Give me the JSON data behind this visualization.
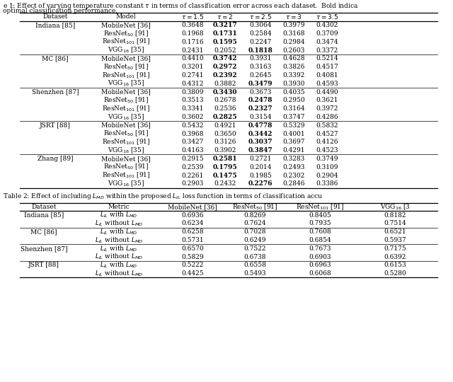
{
  "table1_bold": {
    "0": 3,
    "1": 3,
    "2": 3,
    "3": 4,
    "4": 3,
    "5": 3,
    "6": 3,
    "7": 4,
    "8": 3,
    "9": 4,
    "10": 4,
    "11": 3,
    "12": 4,
    "13": 4,
    "14": 4,
    "15": 4,
    "16": 3,
    "17": 3,
    "18": 3,
    "19": 4
  },
  "table1_group_rows": [
    3,
    7,
    11,
    15
  ],
  "table1_data": [
    [
      "Indiana [85]",
      "MobileNet [36]",
      "0.3648",
      "0.3217",
      "0.3064",
      "0.3979",
      "0.4302"
    ],
    [
      "",
      "ResNet$_{50}$ [91]",
      "0.1968",
      "0.1731",
      "0.2584",
      "0.3168",
      "0.3709"
    ],
    [
      "",
      "ResNet$_{101}$ [91]",
      "0.1716",
      "0.1595",
      "0.2247",
      "0.2984",
      "0.3474"
    ],
    [
      "",
      "VGG$_{16}$ [35]",
      "0.2431",
      "0.2052",
      "0.1818",
      "0.2603",
      "0.3372"
    ],
    [
      "MC [86]",
      "MobileNet [36]",
      "0.4410",
      "0.3742",
      "0.3931",
      "0.4628",
      "0.5214"
    ],
    [
      "",
      "ResNet$_{50}$ [91]",
      "0.3201",
      "0.2972",
      "0.3163",
      "0.3826",
      "0.4517"
    ],
    [
      "",
      "ResNet$_{101}$ [91]",
      "0.2741",
      "0.2392",
      "0.2645",
      "0.3392",
      "0.4081"
    ],
    [
      "",
      "VGG$_{16}$ [35]",
      "0.4312",
      "0.3882",
      "0.3479",
      "0.3930",
      "0.4593"
    ],
    [
      "Shenzhen [87]",
      "MobileNet [36]",
      "0.3809",
      "0.3430",
      "0.3673",
      "0.4035",
      "0.4490"
    ],
    [
      "",
      "ResNet$_{50}$ [91]",
      "0.3513",
      "0.2678",
      "0.2478",
      "0.2950",
      "0.3621"
    ],
    [
      "",
      "ResNet$_{101}$ [91]",
      "0.3341",
      "0.2536",
      "0.2327",
      "0.3164",
      "0.3972"
    ],
    [
      "",
      "VGG$_{16}$ [35]",
      "0.3602",
      "0.2825",
      "0.3154",
      "0.3747",
      "0.4286"
    ],
    [
      "JSRT [88]",
      "MobileNet [36]",
      "0.5432",
      "0.4921",
      "0.4778",
      "0.5329",
      "0.5832"
    ],
    [
      "",
      "ResNet$_{50}$ [91]",
      "0.3968",
      "0.3650",
      "0.3442",
      "0.4001",
      "0.4527"
    ],
    [
      "",
      "ResNet$_{101}$ [91]",
      "0.3427",
      "0.3126",
      "0.3037",
      "0.3697",
      "0.4126"
    ],
    [
      "",
      "VGG$_{16}$ [35]",
      "0.4163",
      "0.3902",
      "0.3847",
      "0.4291",
      "0.4523"
    ],
    [
      "Zhang [89]",
      "MobileNet [36]",
      "0.2915",
      "0.2581",
      "0.2721",
      "0.3283",
      "0.3749"
    ],
    [
      "",
      "ResNet$_{50}$ [91]",
      "0.2539",
      "0.1795",
      "0.2014",
      "0.2493",
      "0.3109"
    ],
    [
      "",
      "ResNet$_{101}$ [91]",
      "0.2261",
      "0.1475",
      "0.1985",
      "0.2302",
      "0.2904"
    ],
    [
      "",
      "VGG$_{16}$ [35]",
      "0.2903",
      "0.2432",
      "0.2276",
      "0.2846",
      "0.3386"
    ]
  ],
  "table2_group_rows": [
    1,
    3,
    5
  ],
  "table2_data": [
    [
      "Indiana [85]",
      "with",
      "0.6936",
      "0.8269",
      "0.8405",
      "0.8182"
    ],
    [
      "",
      "without",
      "0.6234",
      "0.7624",
      "0.7935",
      "0.7514"
    ],
    [
      "MC [86]",
      "with",
      "0.6258",
      "0.7028",
      "0.7608",
      "0.6521"
    ],
    [
      "",
      "without",
      "0.5731",
      "0.6249",
      "0.6854",
      "0.5937"
    ],
    [
      "Shenzhen [87]",
      "with",
      "0.6570",
      "0.7522",
      "0.7673",
      "0.7175"
    ],
    [
      "",
      "without",
      "0.5829",
      "0.6738",
      "0.6903",
      "0.6392"
    ],
    [
      "JSRT [88]",
      "with",
      "0.5222",
      "0.6558",
      "0.6963",
      "0.6153"
    ],
    [
      "",
      "without",
      "0.4425",
      "0.5493",
      "0.6068",
      "0.5280"
    ]
  ]
}
